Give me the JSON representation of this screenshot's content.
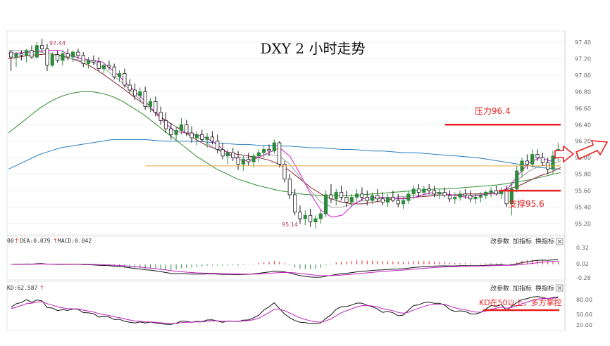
{
  "title": "DXY 2 小时走势",
  "colors": {
    "up": "#2e8b3d",
    "down": "#1a1a1a",
    "accent": "#e8201f",
    "ma5": "#d21bd2",
    "ma10": "#a0a0a0",
    "ma20": "#8b2332",
    "ma60": "#2f8f2f",
    "ma120": "#2a7fbf",
    "orange": "#e8a93a",
    "macd": "#c020c0",
    "hist_up": "#e8201f",
    "hist_down": "#2e8b3d"
  },
  "toolbar": {
    "change_params": "改参数",
    "add_indicator": "加指标",
    "switch_indicator": "换指标"
  },
  "macd_panel": {
    "label_left": "00",
    "dea": "DEA:0.079",
    "macd": "MACD:0.042",
    "ticks": [
      "0.32",
      "0.02",
      "-0.28"
    ]
  },
  "kd_panel": {
    "label": "KD:62.587",
    "ticks": [
      "80.00",
      "50.00",
      "20.00"
    ]
  },
  "annotations": {
    "resistance": "压力96.4",
    "support": "支撑95.6",
    "kd_note": "KD在50以上，多方掌控",
    "high_label": "97.44",
    "low_label": "95.14"
  },
  "chart_data": {
    "type": "candlestick",
    "title": "DXY 2 小时走势",
    "ylim": [
      95.1,
      97.5
    ],
    "y_ticks": [
      95.2,
      95.4,
      95.6,
      95.8,
      96.0,
      96.2,
      96.4,
      96.6,
      96.8,
      97.0,
      97.2,
      97.4
    ],
    "levels": {
      "resistance": 96.4,
      "support": 95.6,
      "orange_line": 95.9
    },
    "candles": [
      [
        97.28,
        97.3,
        97.05,
        97.22
      ],
      [
        97.22,
        97.28,
        97.1,
        97.26
      ],
      [
        97.26,
        97.3,
        97.18,
        97.24
      ],
      [
        97.24,
        97.32,
        97.15,
        97.3
      ],
      [
        97.3,
        97.36,
        97.2,
        97.22
      ],
      [
        97.22,
        97.4,
        97.2,
        97.36
      ],
      [
        97.36,
        97.44,
        97.28,
        97.32
      ],
      [
        97.32,
        97.38,
        97.05,
        97.12
      ],
      [
        97.12,
        97.28,
        97.1,
        97.25
      ],
      [
        97.25,
        97.3,
        97.15,
        97.18
      ],
      [
        97.18,
        97.3,
        97.12,
        97.26
      ],
      [
        97.26,
        97.32,
        97.18,
        97.22
      ],
      [
        97.22,
        97.3,
        97.16,
        97.28
      ],
      [
        97.28,
        97.32,
        97.2,
        97.24
      ],
      [
        97.24,
        97.28,
        97.1,
        97.14
      ],
      [
        97.14,
        97.22,
        97.08,
        97.18
      ],
      [
        97.18,
        97.24,
        97.12,
        97.16
      ],
      [
        97.16,
        97.22,
        97.05,
        97.08
      ],
      [
        97.08,
        97.15,
        97.02,
        97.12
      ],
      [
        97.12,
        97.18,
        97.06,
        97.1
      ],
      [
        97.1,
        97.14,
        96.95,
        96.98
      ],
      [
        96.98,
        97.06,
        96.92,
        97.02
      ],
      [
        97.02,
        97.08,
        96.85,
        96.88
      ],
      [
        96.88,
        96.95,
        96.78,
        96.82
      ],
      [
        96.82,
        96.9,
        96.7,
        96.75
      ],
      [
        96.75,
        96.85,
        96.68,
        96.8
      ],
      [
        96.8,
        96.86,
        96.58,
        96.62
      ],
      [
        96.62,
        96.72,
        96.55,
        96.68
      ],
      [
        96.68,
        96.74,
        96.5,
        96.55
      ],
      [
        96.55,
        96.62,
        96.4,
        96.45
      ],
      [
        96.45,
        96.55,
        96.3,
        96.35
      ],
      [
        96.35,
        96.42,
        96.22,
        96.28
      ],
      [
        96.28,
        96.38,
        96.2,
        96.33
      ],
      [
        96.33,
        96.48,
        96.28,
        96.4
      ],
      [
        96.4,
        96.46,
        96.26,
        96.3
      ],
      [
        96.3,
        96.38,
        96.18,
        96.24
      ],
      [
        96.24,
        96.32,
        96.15,
        96.28
      ],
      [
        96.28,
        96.34,
        96.2,
        96.22
      ],
      [
        96.22,
        96.3,
        96.12,
        96.25
      ],
      [
        96.25,
        96.32,
        96.16,
        96.2
      ],
      [
        96.2,
        96.28,
        96.05,
        96.1
      ],
      [
        96.1,
        96.18,
        95.98,
        96.02
      ],
      [
        96.02,
        96.1,
        95.92,
        96.06
      ],
      [
        96.06,
        96.12,
        95.96,
        96.0
      ],
      [
        96.0,
        96.08,
        95.85,
        95.92
      ],
      [
        95.92,
        96.02,
        95.84,
        95.98
      ],
      [
        95.98,
        96.06,
        95.9,
        95.95
      ],
      [
        95.95,
        96.05,
        95.88,
        96.02
      ],
      [
        96.02,
        96.1,
        95.95,
        96.06
      ],
      [
        96.06,
        96.14,
        96.0,
        96.1
      ],
      [
        96.1,
        96.16,
        96.02,
        96.08
      ],
      [
        96.08,
        96.22,
        96.05,
        96.18
      ],
      [
        96.18,
        96.2,
        95.88,
        95.92
      ],
      [
        95.92,
        95.96,
        95.7,
        95.74
      ],
      [
        95.74,
        95.8,
        95.5,
        95.55
      ],
      [
        95.55,
        95.62,
        95.3,
        95.34
      ],
      [
        95.34,
        95.42,
        95.2,
        95.26
      ],
      [
        95.26,
        95.36,
        95.18,
        95.3
      ],
      [
        95.3,
        95.38,
        95.16,
        95.22
      ],
      [
        95.22,
        95.3,
        95.14,
        95.26
      ],
      [
        95.26,
        95.36,
        95.2,
        95.32
      ],
      [
        95.32,
        95.6,
        95.28,
        95.55
      ],
      [
        95.55,
        95.68,
        95.45,
        95.5
      ],
      [
        95.5,
        95.62,
        95.42,
        95.58
      ],
      [
        95.58,
        95.66,
        95.48,
        95.52
      ],
      [
        95.52,
        95.6,
        95.4,
        95.46
      ],
      [
        95.46,
        95.56,
        95.4,
        95.52
      ],
      [
        95.52,
        95.62,
        95.46,
        95.56
      ],
      [
        95.56,
        95.64,
        95.48,
        95.52
      ],
      [
        95.52,
        95.6,
        95.42,
        95.48
      ],
      [
        95.48,
        95.58,
        95.44,
        95.54
      ],
      [
        95.54,
        95.62,
        95.46,
        95.5
      ],
      [
        95.5,
        95.58,
        95.42,
        95.46
      ],
      [
        95.46,
        95.56,
        95.4,
        95.52
      ],
      [
        95.52,
        95.6,
        95.46,
        95.48
      ],
      [
        95.48,
        95.56,
        95.4,
        95.44
      ],
      [
        95.44,
        95.52,
        95.38,
        95.48
      ],
      [
        95.48,
        95.6,
        95.44,
        95.56
      ],
      [
        95.56,
        95.66,
        95.5,
        95.62
      ],
      [
        95.62,
        95.68,
        95.52,
        95.58
      ],
      [
        95.58,
        95.66,
        95.54,
        95.62
      ],
      [
        95.62,
        95.68,
        95.56,
        95.6
      ],
      [
        95.6,
        95.66,
        95.52,
        95.56
      ],
      [
        95.56,
        95.62,
        95.5,
        95.58
      ],
      [
        95.58,
        95.64,
        95.52,
        95.54
      ],
      [
        95.54,
        95.6,
        95.46,
        95.5
      ],
      [
        95.5,
        95.58,
        95.44,
        95.52
      ],
      [
        95.52,
        95.6,
        95.48,
        95.56
      ],
      [
        95.56,
        95.62,
        95.5,
        95.54
      ],
      [
        95.54,
        95.6,
        95.46,
        95.5
      ],
      [
        95.5,
        95.56,
        95.44,
        95.52
      ],
      [
        95.52,
        95.58,
        95.46,
        95.54
      ],
      [
        95.54,
        95.6,
        95.5,
        95.58
      ],
      [
        95.58,
        95.64,
        95.52,
        95.6
      ],
      [
        95.6,
        95.66,
        95.54,
        95.56
      ],
      [
        95.56,
        95.64,
        95.5,
        95.6
      ],
      [
        95.6,
        95.66,
        95.4,
        95.44
      ],
      [
        95.44,
        95.7,
        95.3,
        95.62
      ],
      [
        95.62,
        95.9,
        95.58,
        95.84
      ],
      [
        95.84,
        96.0,
        95.76,
        95.96
      ],
      [
        95.96,
        96.04,
        95.86,
        95.92
      ],
      [
        95.92,
        96.1,
        95.88,
        96.04
      ],
      [
        96.04,
        96.1,
        95.96,
        96.0
      ],
      [
        96.0,
        96.06,
        95.9,
        95.94
      ],
      [
        95.94,
        96.0,
        95.8,
        95.86
      ],
      [
        95.86,
        96.08,
        95.8,
        96.02
      ],
      [
        96.02,
        96.18,
        95.96,
        96.1
      ]
    ],
    "ma": {
      "ma5": [
        97.26,
        97.27,
        97.28,
        97.29,
        97.3,
        97.3,
        97.24,
        97.2,
        97.18,
        97.16,
        97.06,
        96.94,
        96.82,
        96.7,
        96.56,
        96.42,
        96.32,
        96.3,
        96.28,
        96.24,
        96.16,
        96.06,
        95.98,
        95.96,
        96.0,
        96.06,
        96.12,
        96.02,
        95.8,
        95.56,
        95.36,
        95.28,
        95.3,
        95.42,
        95.5,
        95.52,
        95.52,
        95.5,
        95.5,
        95.52,
        95.56,
        95.58,
        95.56,
        95.54,
        95.52,
        95.54,
        95.56,
        95.56,
        95.64,
        95.8,
        95.94,
        96.0,
        95.96,
        96.02
      ],
      "ma10": [
        97.3,
        97.3,
        97.29,
        97.28,
        97.26,
        97.23,
        97.2,
        97.18,
        97.16,
        97.1,
        97.0,
        96.9,
        96.78,
        96.66,
        96.55,
        96.45,
        96.38,
        96.33,
        96.26,
        96.18,
        96.1,
        96.03,
        96.0,
        96.0,
        96.02,
        96.04,
        96.02,
        95.92,
        95.76,
        95.6,
        95.46,
        95.4,
        95.4,
        95.44,
        95.48,
        95.5,
        95.51,
        95.52,
        95.53,
        95.54,
        95.55,
        95.55,
        95.55,
        95.54,
        95.54,
        95.55,
        95.56,
        95.58,
        95.64,
        95.74,
        95.84,
        95.9,
        95.92,
        95.96
      ],
      "ma20": [
        97.2,
        97.22,
        97.24,
        97.25,
        97.26,
        97.24,
        97.2,
        97.16,
        97.1,
        97.02,
        96.93,
        96.84,
        96.74,
        96.65,
        96.56,
        96.46,
        96.38,
        96.3,
        96.22,
        96.15,
        96.1,
        96.07,
        96.04,
        96.02,
        96.0,
        95.97,
        95.92,
        95.84,
        95.74,
        95.64,
        95.56,
        95.5,
        95.46,
        95.44,
        95.44,
        95.46,
        95.48,
        95.5,
        95.51,
        95.52,
        95.53,
        95.54,
        95.55,
        95.55,
        95.56,
        95.56,
        95.57,
        95.58,
        95.62,
        95.66,
        95.72,
        95.78,
        95.82,
        95.88
      ],
      "ma60": [
        96.3,
        96.4,
        96.5,
        96.6,
        96.68,
        96.74,
        96.78,
        96.8,
        96.8,
        96.78,
        96.74,
        96.68,
        96.6,
        96.52,
        96.42,
        96.32,
        96.22,
        96.12,
        96.02,
        95.94,
        95.86,
        95.8,
        95.74,
        95.7,
        95.66,
        95.63,
        95.6,
        95.58,
        95.56,
        95.55,
        95.54,
        95.54,
        95.54,
        95.54,
        95.55,
        95.56,
        95.57,
        95.58,
        95.59,
        95.6,
        95.61,
        95.62,
        95.62,
        95.63,
        95.64,
        95.65,
        95.66,
        95.67,
        95.69,
        95.71,
        95.73,
        95.76,
        95.79,
        95.82
      ],
      "ma120": [
        95.86,
        95.92,
        95.98,
        96.04,
        96.08,
        96.12,
        96.14,
        96.16,
        96.18,
        96.2,
        96.22,
        96.22,
        96.22,
        96.22,
        96.21,
        96.2,
        96.2,
        96.2,
        96.2,
        96.19,
        96.18,
        96.17,
        96.16,
        96.16,
        96.15,
        96.15,
        96.14,
        96.14,
        96.13,
        96.12,
        96.12,
        96.11,
        96.1,
        96.1,
        96.09,
        96.08,
        96.08,
        96.07,
        96.06,
        96.06,
        96.05,
        96.04,
        96.03,
        96.02,
        96.01,
        96.0,
        95.98,
        95.96,
        95.94,
        95.92,
        95.9,
        95.88,
        95.87,
        95.86
      ]
    }
  }
}
